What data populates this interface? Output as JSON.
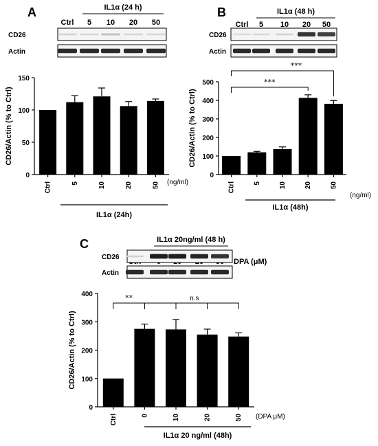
{
  "panels": {
    "A": {
      "letter": "A",
      "blot": {
        "treatment_header": "IL1α (24 h)",
        "ctrl_label": "Ctrl",
        "lane_labels": [
          "5",
          "10",
          "20",
          "50"
        ],
        "rows": [
          "CD26",
          "Actin"
        ],
        "cd26_intensity": [
          0.12,
          0.1,
          0.18,
          0.1,
          0.1
        ],
        "actin_intensity": [
          0.9,
          0.9,
          0.9,
          0.9,
          0.9
        ]
      },
      "unit_label": "(ng/ml)",
      "group_label": "IL1α (24h)"
    },
    "B": {
      "letter": "B",
      "blot": {
        "treatment_header": "IL1α (48 h)",
        "ctrl_label": "Ctrl",
        "lane_labels": [
          "5",
          "10",
          "20",
          "50"
        ],
        "rows": [
          "CD26",
          "Actin"
        ],
        "cd26_intensity": [
          0.08,
          0.1,
          0.12,
          0.85,
          0.8
        ],
        "actin_intensity": [
          0.9,
          0.9,
          0.9,
          0.9,
          0.9
        ]
      },
      "unit_label": "(ng/ml)",
      "group_label": "IL1α (48h)",
      "significance": [
        "***",
        "***"
      ]
    },
    "C": {
      "letter": "C",
      "blot": {
        "treatment_header": "IL1α 20ng/ml (48 h)",
        "ctrl_label": "Ctrl",
        "lane_labels": [
          "0",
          "10",
          "20",
          "50"
        ],
        "dose_label": "DPA (μM)",
        "rows": [
          "CD26",
          "Actin"
        ],
        "cd26_intensity": [
          0.12,
          0.95,
          0.95,
          0.92,
          0.85
        ],
        "actin_intensity": [
          0.9,
          0.9,
          0.9,
          0.9,
          0.9
        ]
      },
      "unit_label": "(DPA μM)",
      "group_label": "IL1α 20 ng/ml (48h)",
      "significance": [
        "**",
        "n.s"
      ]
    }
  },
  "chart_data": [
    {
      "type": "bar",
      "panel": "A",
      "categories": [
        "Ctrl",
        "5",
        "10",
        "20",
        "50"
      ],
      "values": [
        100,
        112,
        121,
        106,
        114
      ],
      "errors": [
        0,
        10,
        13,
        7,
        3
      ],
      "ylabel": "CD26/Actin (% to Ctrl)",
      "ylim": [
        0,
        150
      ],
      "yticks": [
        0,
        50,
        100,
        150
      ]
    },
    {
      "type": "bar",
      "panel": "B",
      "categories": [
        "Ctrl",
        "5",
        "10",
        "20",
        "50"
      ],
      "values": [
        100,
        120,
        137,
        413,
        381
      ],
      "errors": [
        0,
        5,
        12,
        17,
        18
      ],
      "ylabel": "CD26/Actin (% to Ctrl)",
      "ylim": [
        0,
        500
      ],
      "yticks": [
        0,
        100,
        200,
        300,
        400,
        500
      ]
    },
    {
      "type": "bar",
      "panel": "C",
      "categories": [
        "Ctrl",
        "0",
        "10",
        "20",
        "50"
      ],
      "values": [
        100,
        275,
        273,
        255,
        248
      ],
      "errors": [
        0,
        17,
        35,
        19,
        13
      ],
      "ylabel": "CD26/Actin (% to Ctrl)",
      "ylim": [
        0,
        400
      ],
      "yticks": [
        0,
        100,
        200,
        300,
        400
      ]
    }
  ]
}
